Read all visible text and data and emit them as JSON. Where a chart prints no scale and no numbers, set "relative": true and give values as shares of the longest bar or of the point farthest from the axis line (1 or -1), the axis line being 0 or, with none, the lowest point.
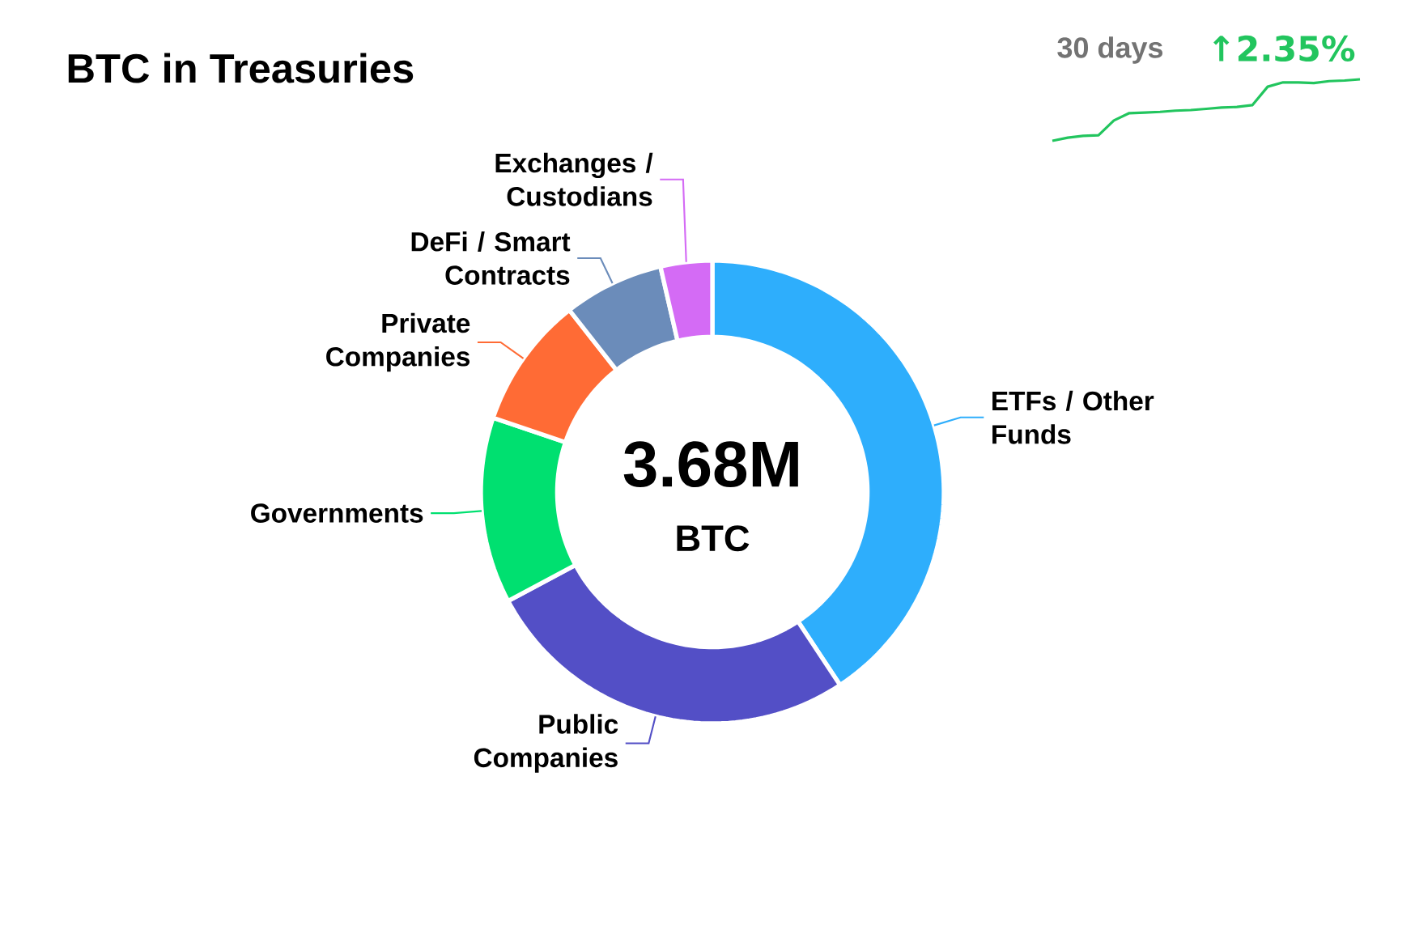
{
  "chart_data": [
    {
      "type": "donut",
      "title": "BTC in Treasuries",
      "categories": [
        "ETFs / Other Funds",
        "Public Companies",
        "Governments",
        "Private Companies",
        "DeFi / Smart Contracts",
        "Exchanges / Custodians"
      ],
      "values": [
        40.7,
        26.5,
        13,
        9.2,
        7,
        3.6
      ],
      "colors": [
        "#2eaefc",
        "#534fc6",
        "#00e070",
        "#ff6b35",
        "#6b8cba",
        "#d46bf5"
      ],
      "annotations": [
        "3.68M",
        "BTC"
      ]
    },
    {
      "type": "line",
      "title": "30 days",
      "annotations": [
        "↑2.35%"
      ],
      "relative": true,
      "color": "#22c55e",
      "categories": [
        null,
        null,
        null,
        null,
        null,
        null,
        null,
        null,
        null,
        null,
        null,
        null,
        null,
        null,
        null,
        null,
        null,
        null,
        null,
        null,
        null
      ],
      "values": [
        0,
        0.05,
        0.08,
        0.09,
        0.33,
        0.45,
        0.46,
        0.47,
        0.49,
        0.5,
        0.52,
        0.54,
        0.55,
        0.58,
        0.88,
        0.95,
        0.95,
        0.94,
        0.97,
        0.98,
        1
      ]
    }
  ]
}
